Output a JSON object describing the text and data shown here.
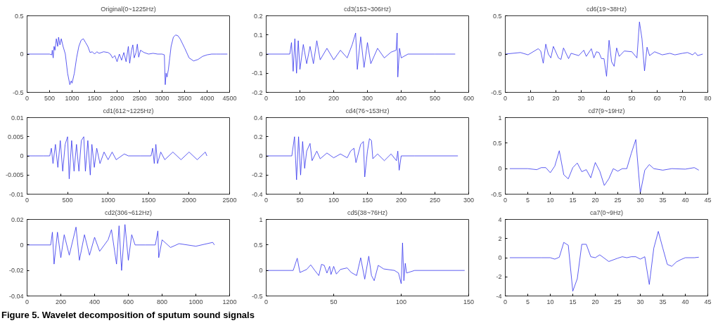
{
  "chart_data": [
    {
      "type": "line",
      "title": "Original(0~1225Hz)",
      "color": "#3333ee",
      "xlim": [
        0,
        4500
      ],
      "ylim": [
        -0.5,
        0.5
      ],
      "xticks": [
        0,
        500,
        1000,
        1500,
        2000,
        2500,
        3000,
        3500,
        4000,
        4500
      ],
      "yticks": [
        -0.5,
        0,
        0.5
      ],
      "x": [
        0,
        500,
        550,
        560,
        580,
        600,
        620,
        650,
        680,
        700,
        730,
        760,
        800,
        850,
        900,
        950,
        980,
        1000,
        1050,
        1100,
        1150,
        1200,
        1250,
        1300,
        1350,
        1400,
        1450,
        1500,
        1550,
        1600,
        1700,
        1800,
        1850,
        1900,
        1950,
        2000,
        2050,
        2100,
        2150,
        2200,
        2250,
        2280,
        2320,
        2350,
        2380,
        2420,
        2450,
        2480,
        2520,
        2600,
        2700,
        2800,
        2900,
        3000,
        3050,
        3070,
        3090,
        3110,
        3140,
        3170,
        3200,
        3250,
        3300,
        3350,
        3400,
        3500,
        3600,
        3700,
        3800,
        3900,
        4000,
        4100,
        4200,
        4300,
        4450
      ],
      "values": [
        0,
        0,
        -0.01,
        0.05,
        -0.05,
        0.1,
        0.05,
        0.2,
        0.1,
        0.22,
        0.12,
        0.2,
        0.1,
        0,
        -0.25,
        -0.4,
        -0.35,
        -0.38,
        -0.25,
        -0.05,
        0.1,
        0.18,
        0.2,
        0.15,
        0.1,
        0.02,
        0.03,
        0,
        0.03,
        0.01,
        0.03,
        0.02,
        0,
        -0.05,
        -0.02,
        -0.1,
        0,
        -0.08,
        0.02,
        -0.1,
        0.1,
        -0.12,
        0.05,
        0.12,
        -0.05,
        0.02,
        0.13,
        -0.04,
        0.05,
        0.02,
        0,
        0.01,
        0,
        0,
        -0.01,
        -0.4,
        -0.25,
        -0.3,
        -0.2,
        -0.05,
        0.1,
        0.22,
        0.25,
        0.24,
        0.2,
        0.08,
        -0.05,
        -0.09,
        -0.07,
        -0.03,
        -0.01,
        0,
        0,
        0,
        0
      ]
    },
    {
      "type": "line",
      "title": "cd3(153~306Hz)",
      "color": "#3333ee",
      "xlim": [
        0,
        600
      ],
      "ylim": [
        -0.2,
        0.2
      ],
      "xticks": [
        0,
        100,
        200,
        300,
        400,
        500,
        600
      ],
      "yticks": [
        -0.2,
        -0.1,
        0,
        0.1,
        0.2
      ],
      "x": [
        0,
        70,
        75,
        80,
        85,
        90,
        95,
        100,
        110,
        120,
        130,
        140,
        150,
        160,
        180,
        200,
        220,
        240,
        255,
        265,
        270,
        280,
        290,
        300,
        310,
        330,
        350,
        370,
        385,
        388,
        390,
        395,
        400,
        420,
        500,
        560
      ],
      "values": [
        0,
        0,
        0.06,
        -0.09,
        0.08,
        -0.1,
        0.07,
        -0.08,
        0.05,
        -0.05,
        0.04,
        -0.05,
        0.07,
        -0.03,
        0.03,
        -0.03,
        0.02,
        -0.02,
        0.05,
        0.11,
        -0.08,
        0.09,
        -0.07,
        0.06,
        -0.05,
        0.03,
        -0.02,
        0.01,
        0.02,
        0.11,
        -0.12,
        0.03,
        -0.02,
        0,
        0,
        0
      ]
    },
    {
      "type": "line",
      "title": "cd6(19~38Hz)",
      "color": "#3333ee",
      "xlim": [
        0,
        80
      ],
      "ylim": [
        -0.5,
        0.5
      ],
      "xticks": [
        0,
        10,
        20,
        30,
        40,
        50,
        60,
        70,
        80
      ],
      "yticks": [
        -0.5,
        0,
        0.5
      ],
      "x": [
        0,
        6,
        9,
        13,
        14,
        15,
        16,
        17,
        18,
        19,
        21,
        22,
        23,
        25,
        26,
        29,
        31,
        32,
        34,
        35,
        36,
        37,
        38,
        39,
        40,
        41,
        42,
        43,
        44,
        45,
        47,
        50,
        52,
        53,
        54,
        55,
        56,
        57,
        59,
        62,
        65,
        67,
        70,
        72,
        74,
        75,
        76,
        78
      ],
      "values": [
        0,
        0.02,
        -0.01,
        0.07,
        0.04,
        -0.12,
        0.13,
        0,
        -0.05,
        0.1,
        -0.05,
        -0.07,
        0.08,
        -0.06,
        0.01,
        -0.02,
        0.05,
        -0.03,
        0.07,
        -0.05,
        0.03,
        0.02,
        -0.06,
        -0.06,
        -0.29,
        0.18,
        -0.1,
        -0.16,
        0.08,
        -0.03,
        0.04,
        0.03,
        -0.05,
        0.42,
        0.2,
        -0.22,
        0.09,
        -0.02,
        0.03,
        -0.01,
        0.01,
        -0.01,
        0.01,
        0.02,
        -0.01,
        0.02,
        -0.02,
        0
      ]
    },
    {
      "type": "line",
      "title": "cd1(612~1225Hz)",
      "color": "#3333ee",
      "xlim": [
        0,
        2500
      ],
      "ylim": [
        -0.01,
        0.01
      ],
      "xticks": [
        0,
        500,
        1000,
        1500,
        2000,
        2500
      ],
      "yticks": [
        -0.01,
        -0.005,
        0,
        0.005,
        0.01
      ],
      "x": [
        0,
        100,
        200,
        280,
        300,
        320,
        350,
        380,
        410,
        440,
        470,
        500,
        520,
        550,
        580,
        610,
        640,
        670,
        700,
        720,
        750,
        780,
        800,
        830,
        860,
        900,
        950,
        1000,
        1050,
        1100,
        1200,
        1250,
        1400,
        1530,
        1550,
        1570,
        1590,
        1610,
        1650,
        1700,
        1800,
        1900,
        2000,
        2100,
        2200,
        2220
      ],
      "values": [
        0,
        0,
        0,
        0,
        0.002,
        -0.002,
        0.003,
        -0.003,
        0.004,
        -0.004,
        0.003,
        0.005,
        -0.006,
        0.004,
        -0.004,
        0.003,
        -0.004,
        0.004,
        0.005,
        -0.004,
        0.004,
        -0.005,
        0.003,
        -0.003,
        0.002,
        -0.002,
        0.001,
        -0.001,
        0.001,
        -0.001,
        0.0005,
        0,
        0,
        0,
        0.002,
        -0.002,
        0.003,
        -0.002,
        0.001,
        -0.001,
        0.001,
        -0.001,
        0.001,
        -0.001,
        0.001,
        0
      ]
    },
    {
      "type": "line",
      "title": "cd4(76~153Hz)",
      "color": "#3333ee",
      "xlim": [
        0,
        300
      ],
      "ylim": [
        -0.4,
        0.4
      ],
      "xticks": [
        0,
        50,
        100,
        150,
        200,
        250,
        300
      ],
      "yticks": [
        -0.4,
        -0.2,
        0,
        0.2,
        0.4
      ],
      "x": [
        0,
        38,
        42,
        45,
        48,
        51,
        54,
        57,
        60,
        65,
        68,
        75,
        80,
        90,
        100,
        110,
        120,
        125,
        130,
        133,
        140,
        144,
        146,
        150,
        153,
        156,
        158,
        165,
        175,
        185,
        193,
        195,
        197,
        200,
        220,
        284
      ],
      "values": [
        0,
        0,
        0.2,
        -0.25,
        0.2,
        -0.2,
        0.15,
        -0.13,
        0.05,
        0.13,
        -0.05,
        0.05,
        -0.03,
        0.03,
        -0.02,
        0.02,
        -0.02,
        0.05,
        0.08,
        -0.07,
        0.12,
        0.15,
        -0.22,
        0.05,
        0.18,
        0.16,
        -0.03,
        0.02,
        -0.05,
        0.02,
        -0.05,
        0.05,
        -0.15,
        0,
        0,
        0
      ]
    },
    {
      "type": "line",
      "title": "cd7(9~19Hz)",
      "color": "#3333ee",
      "xlim": [
        0,
        45
      ],
      "ylim": [
        -0.5,
        1
      ],
      "xticks": [
        0,
        5,
        10,
        15,
        20,
        25,
        30,
        35,
        40,
        45
      ],
      "yticks": [
        -0.5,
        0,
        0.5,
        1
      ],
      "x": [
        1,
        5,
        7,
        8,
        9,
        10,
        11,
        12,
        13,
        14,
        15,
        16,
        17,
        18,
        19,
        20,
        21,
        22,
        23,
        24,
        25,
        26,
        27,
        28,
        29,
        30,
        31,
        32,
        33,
        35,
        37,
        40,
        42,
        43
      ],
      "values": [
        0,
        0,
        -0.02,
        0.02,
        0.02,
        -0.08,
        0.05,
        0.35,
        -0.12,
        -0.2,
        0.02,
        0.11,
        -0.06,
        -0.02,
        -0.18,
        0.12,
        -0.05,
        -0.33,
        -0.2,
        0,
        -0.05,
        0,
        0,
        0.3,
        0.57,
        -0.48,
        -0.03,
        0.08,
        0,
        -0.03,
        0,
        -0.01,
        0.02,
        -0.03
      ]
    },
    {
      "type": "line",
      "title": "cd2(306~612Hz)",
      "color": "#3333ee",
      "xlim": [
        0,
        1200
      ],
      "ylim": [
        -0.04,
        0.02
      ],
      "xticks": [
        0,
        200,
        400,
        600,
        800,
        1000,
        1200
      ],
      "yticks": [
        -0.04,
        -0.02,
        0,
        0.02
      ],
      "annotations": [
        "Figure 5.  Wavelet decomposition of sputum sound signals"
      ],
      "x": [
        0,
        140,
        150,
        160,
        180,
        200,
        220,
        250,
        290,
        310,
        340,
        370,
        400,
        430,
        480,
        500,
        530,
        545,
        560,
        580,
        600,
        620,
        640,
        700,
        760,
        775,
        780,
        800,
        850,
        900,
        1000,
        1100,
        1110
      ],
      "values": [
        0,
        0,
        0.01,
        -0.015,
        0.01,
        -0.01,
        0.008,
        -0.008,
        0.014,
        -0.012,
        0.008,
        -0.008,
        0.006,
        -0.005,
        0.004,
        0.012,
        -0.015,
        0.015,
        -0.02,
        0.016,
        -0.012,
        0.008,
        0,
        0,
        0,
        0.011,
        -0.01,
        0.004,
        -0.002,
        0.001,
        -0.001,
        0.002,
        0
      ]
    },
    {
      "type": "line",
      "title": "cd5(38~76Hz)",
      "color": "#3333ee",
      "xlim": [
        0,
        150
      ],
      "ylim": [
        -0.5,
        1
      ],
      "xticks": [
        0,
        50,
        100,
        150
      ],
      "yticks": [
        -0.5,
        0,
        0.5,
        1
      ],
      "x": [
        0,
        20,
        23,
        25,
        30,
        33,
        36,
        39,
        41,
        43,
        45,
        47,
        48,
        50,
        52,
        55,
        60,
        63,
        67,
        70,
        73,
        76,
        78,
        80,
        83,
        87,
        95,
        98,
        100,
        101,
        102,
        103,
        104,
        110,
        147
      ],
      "values": [
        0,
        0,
        0.24,
        -0.04,
        0.02,
        0.11,
        0,
        -0.1,
        0.12,
        0.1,
        -0.05,
        0.08,
        -0.08,
        0.08,
        -0.07,
        0.02,
        0.05,
        -0.04,
        -0.1,
        0.25,
        -0.17,
        0.28,
        -0.1,
        -0.2,
        0.1,
        0.03,
        0,
        -0.05,
        -0.26,
        0.54,
        -0.2,
        0.14,
        -0.05,
        0,
        0
      ]
    },
    {
      "type": "line",
      "title": "ca7(0~9Hz)",
      "color": "#3333ee",
      "xlim": [
        0,
        45
      ],
      "ylim": [
        -4,
        4
      ],
      "xticks": [
        0,
        5,
        10,
        15,
        20,
        25,
        30,
        35,
        40,
        45
      ],
      "yticks": [
        -4,
        -2,
        0,
        2,
        4
      ],
      "x": [
        1,
        8,
        10,
        11,
        12,
        13,
        14,
        15,
        16,
        17,
        18,
        19,
        20,
        21,
        23,
        25,
        26,
        27,
        28,
        29,
        30,
        31,
        32,
        33,
        34,
        35,
        36,
        37,
        38,
        39,
        40,
        42,
        43
      ],
      "values": [
        0,
        0,
        0,
        -0.15,
        0.05,
        1.6,
        1.3,
        -3.5,
        -2.2,
        1.4,
        1.4,
        0.1,
        0,
        0.3,
        -0.4,
        -0.05,
        0.1,
        0,
        0.1,
        0.1,
        -0.15,
        0.1,
        -2.8,
        1,
        2.75,
        1,
        -0.7,
        -0.9,
        -0.45,
        -0.2,
        0,
        0,
        0.05
      ]
    }
  ]
}
